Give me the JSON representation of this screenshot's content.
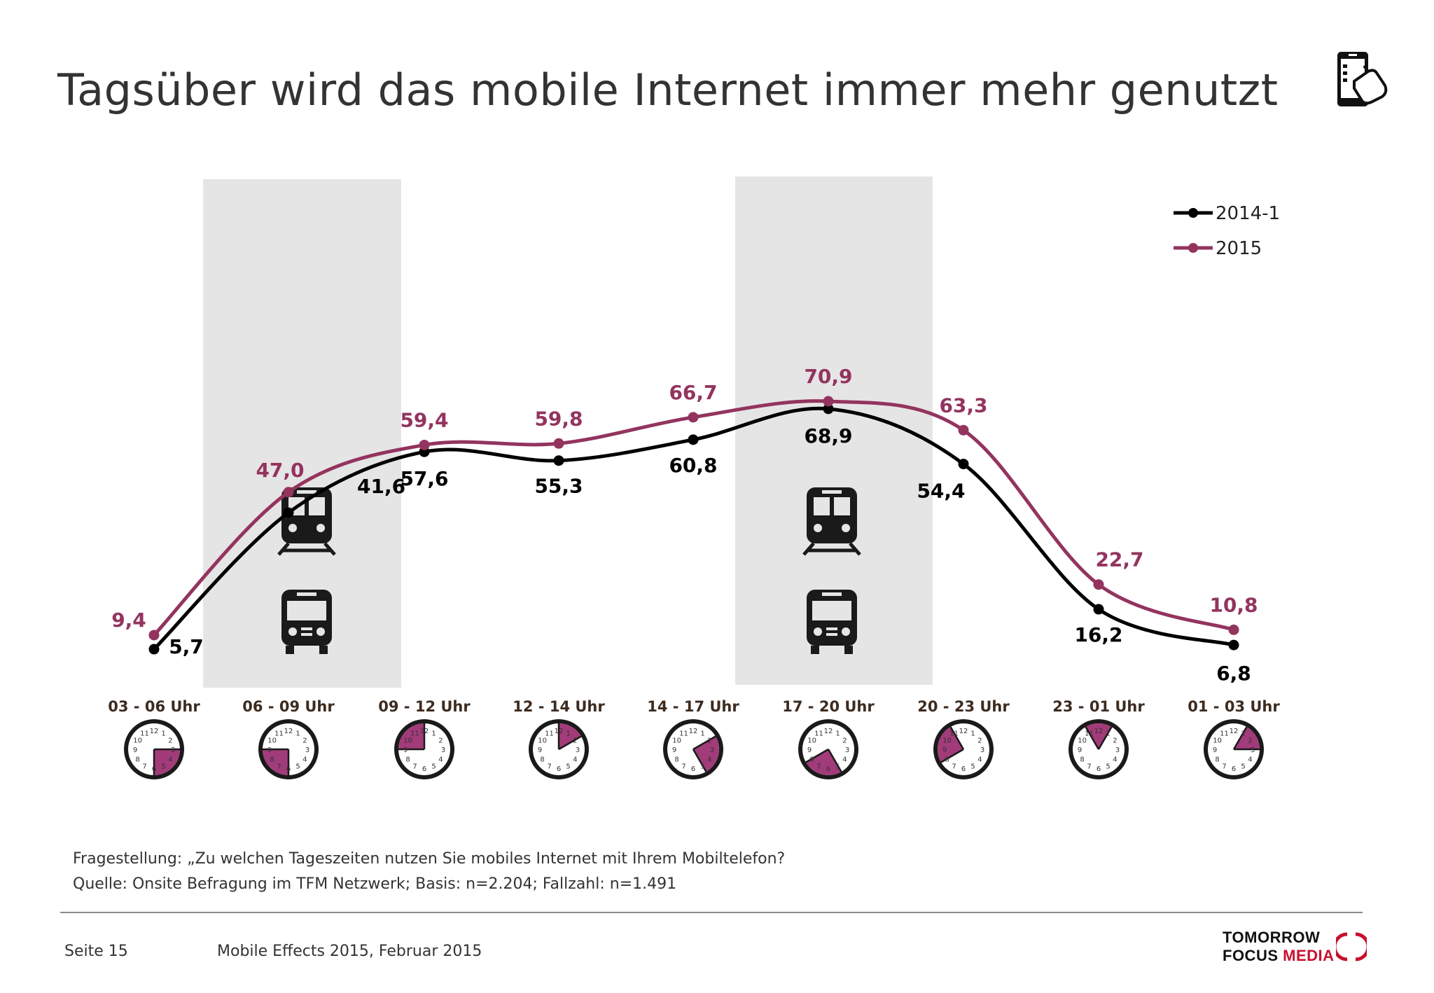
{
  "header": {
    "title": "Tagsüber wird das mobile Internet immer mehr genutzt",
    "icon": "smartphone-hand-icon"
  },
  "chart_data": {
    "type": "line",
    "title": "Tagsüber wird das mobile Internet immer mehr genutzt",
    "categories": [
      "03 - 06 Uhr",
      "06 - 09 Uhr",
      "09 - 12 Uhr",
      "12 - 14 Uhr",
      "14 - 17 Uhr",
      "17 - 20 Uhr",
      "20 - 23 Uhr",
      "23 - 01 Uhr",
      "01 - 03 Uhr"
    ],
    "series": [
      {
        "name": "2014-1",
        "values": [
          5.7,
          41.6,
          57.6,
          55.3,
          60.8,
          68.9,
          54.4,
          16.2,
          6.8
        ],
        "labels": [
          "5,7",
          "41,6",
          "57,6",
          "55,3",
          "60,8",
          "68,9",
          "54,4",
          "16,2",
          "6,8"
        ],
        "color": "#000000"
      },
      {
        "name": "2015",
        "values": [
          9.4,
          47.0,
          59.4,
          59.8,
          66.7,
          70.9,
          63.3,
          22.7,
          10.8
        ],
        "labels": [
          "9,4",
          "47,0",
          "59,4",
          "59,8",
          "66,7",
          "70,9",
          "63,3",
          "22,7",
          "10,8"
        ],
        "color": "#93345f"
      }
    ],
    "highlighted_periods": [
      "06 - 09 Uhr",
      "17 - 20 Uhr"
    ],
    "highlight_icons": [
      "train-icon",
      "bus-icon"
    ],
    "clock_icons": [
      {
        "start_hour": 3,
        "end_hour": 6
      },
      {
        "start_hour": 6,
        "end_hour": 9
      },
      {
        "start_hour": 9,
        "end_hour": 12
      },
      {
        "start_hour": 12,
        "end_hour": 14
      },
      {
        "start_hour": 14,
        "end_hour": 17
      },
      {
        "start_hour": 17,
        "end_hour": 20
      },
      {
        "start_hour": 20,
        "end_hour": 23
      },
      {
        "start_hour": 23,
        "end_hour": 1
      },
      {
        "start_hour": 1,
        "end_hour": 3
      }
    ],
    "legend_position": "top-right",
    "grid": false,
    "ylim": [
      0,
      80
    ],
    "xlabel": "",
    "ylabel": ""
  },
  "notes": {
    "question": "Fragestellung: „Zu welchen Tageszeiten nutzen Sie mobiles Internet mit Ihrem Mobiltelefon?",
    "source": "Quelle: Onsite Befragung im TFM Netzwerk; Basis: n=2.204; Fallzahl: n=1.491"
  },
  "footer": {
    "page": "Seite 15",
    "publication": "Mobile Effects 2015, Februar 2015",
    "brand_line1": "TOMORROW",
    "brand_line2a": "FOCUS ",
    "brand_line2b": "MEDIA"
  },
  "colors": {
    "series_2014": "#000000",
    "series_2015": "#93345f",
    "highlight_band": "#e6e5e5",
    "clock_fill": "#a23b7a"
  }
}
